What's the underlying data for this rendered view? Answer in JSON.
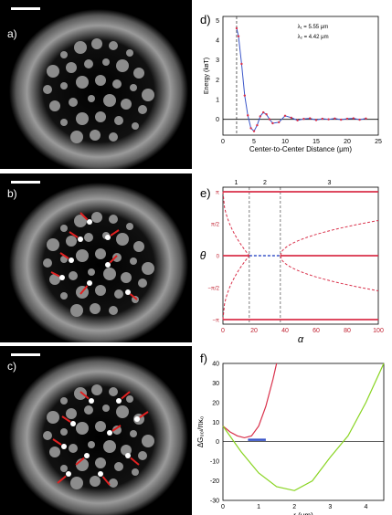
{
  "panel_labels": {
    "a": "a)",
    "b": "b)",
    "c": "c)",
    "d": "d)",
    "e": "e)",
    "f": "f)"
  },
  "colors": {
    "photo_bg": "#000000",
    "arrow": "#e02020",
    "scalebar": "#ffffff",
    "line_red": "#d9304a",
    "line_blue": "#3a55c8",
    "line_green": "#88d420"
  },
  "chart_data": [
    {
      "type": "line",
      "panel": "d",
      "xlabel": "Center-to-Center Distance (μm)",
      "ylabel": "Energy (kʙT)",
      "xlim": [
        0,
        25
      ],
      "ylim": [
        -0.8,
        5.2
      ],
      "xticks": [
        "0",
        "5",
        "10",
        "15",
        "20",
        "25"
      ],
      "yticks": [
        "0",
        "1",
        "2",
        "3",
        "4",
        "5"
      ],
      "annotations": [
        "λ₁ = 5.55 μm",
        "λ₂ = 4.42 μm"
      ],
      "series": [
        {
          "values_x": [
            2.2,
            2.5,
            3,
            3.5,
            4,
            4.5,
            5,
            5.5,
            6,
            6.5,
            7,
            7.5,
            8,
            9,
            10,
            11,
            12,
            13,
            14,
            15,
            16,
            17,
            18,
            19,
            20,
            21,
            22,
            23
          ],
          "values_y": [
            4.6,
            4.2,
            2.8,
            1.2,
            0.2,
            -0.45,
            -0.6,
            -0.3,
            0.15,
            0.35,
            0.25,
            0.0,
            -0.2,
            -0.15,
            0.18,
            0.08,
            -0.05,
            0.02,
            0.05,
            -0.04,
            0.03,
            0.0,
            0.04,
            -0.02,
            0.03,
            0.05,
            -0.02,
            0.04
          ]
        }
      ]
    },
    {
      "type": "line",
      "panel": "e",
      "xlabel": "α",
      "ylabel": "θ",
      "xlim": [
        0,
        100
      ],
      "ylim": [
        -3.14,
        3.14
      ],
      "xticks": [
        "0",
        "20",
        "40",
        "60",
        "80",
        "100"
      ],
      "yticks": [
        "π",
        "π/2",
        "0",
        "−π/2",
        "−π"
      ],
      "regions": [
        "1",
        "2",
        "3"
      ],
      "region_bounds": [
        0,
        17,
        37,
        100
      ]
    },
    {
      "type": "line",
      "panel": "f",
      "xlabel": "r (μm)",
      "ylabel": "ΔG₀ₒₗ/πκ₀",
      "xlim": [
        0,
        4.5
      ],
      "ylim": [
        -30,
        40
      ],
      "xticks": [
        "0",
        "1",
        "2",
        "3",
        "4"
      ],
      "yticks": [
        "40",
        "30",
        "20",
        "10",
        "0",
        "-10",
        "-20",
        "-30"
      ],
      "series": [
        {
          "values_x": [
            0,
            0.2,
            0.4,
            0.6,
            0.8,
            1.0,
            1.2,
            1.4,
            1.5
          ],
          "values_y": [
            8,
            5,
            3,
            2,
            3,
            8,
            18,
            32,
            40
          ]
        },
        {
          "values_x": [
            0,
            0.5,
            1.0,
            1.5,
            2.0,
            2.5,
            3.0,
            3.5,
            4.0,
            4.5
          ],
          "values_y": [
            8,
            -5,
            -16,
            -23,
            -25,
            -20,
            -8,
            3,
            20,
            40
          ]
        },
        {
          "values_x": [
            0.7,
            1.2
          ],
          "values_y": [
            1,
            1
          ]
        }
      ]
    }
  ]
}
